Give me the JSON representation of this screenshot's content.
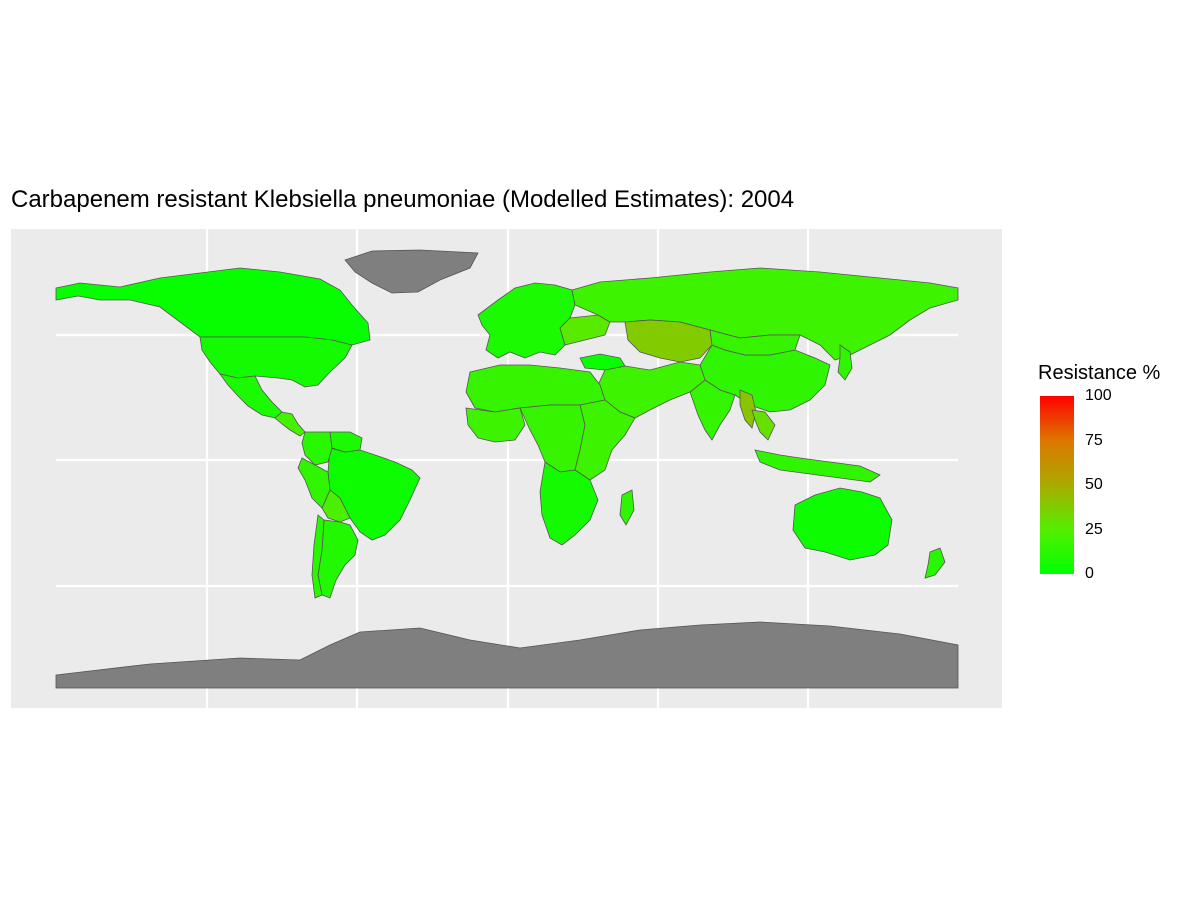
{
  "chart_data": {
    "type": "choropleth",
    "title": "Carbapenem resistant Klebsiella pneumoniae  (Modelled Estimates):  2004",
    "legend": {
      "title": "Resistance %",
      "ticks": [
        0,
        25,
        50,
        75,
        100
      ],
      "colors": [
        "#00ff00",
        "#ff0000"
      ],
      "placement": "right"
    },
    "panel_background": "#ebebeb",
    "gridlines": "white",
    "no_data_color": "#7f7f7f",
    "regions": [
      {
        "name": "Greenland",
        "value": null
      },
      {
        "name": "Antarctica",
        "value": null
      },
      {
        "name": "Canada",
        "value": 2
      },
      {
        "name": "United States",
        "value": 6
      },
      {
        "name": "Mexico",
        "value": 8
      },
      {
        "name": "Central America",
        "value": 20
      },
      {
        "name": "Brazil",
        "value": 4
      },
      {
        "name": "Bolivia",
        "value": 22
      },
      {
        "name": "Argentina",
        "value": 10
      },
      {
        "name": "Peru",
        "value": 14
      },
      {
        "name": "Colombia",
        "value": 12
      },
      {
        "name": "Venezuela",
        "value": 8
      },
      {
        "name": "Chile",
        "value": 12
      },
      {
        "name": "Europe",
        "value": 8
      },
      {
        "name": "Ukraine",
        "value": 26
      },
      {
        "name": "Russia",
        "value": 18
      },
      {
        "name": "Kazakhstan",
        "value": 38
      },
      {
        "name": "China",
        "value": 14
      },
      {
        "name": "Mongolia",
        "value": 16
      },
      {
        "name": "India",
        "value": 15
      },
      {
        "name": "Middle East",
        "value": 18
      },
      {
        "name": "Turkey",
        "value": 3
      },
      {
        "name": "Myanmar",
        "value": 40
      },
      {
        "name": "Thailand",
        "value": 30
      },
      {
        "name": "Japan",
        "value": 14
      },
      {
        "name": "North Africa",
        "value": 16
      },
      {
        "name": "West Africa",
        "value": 18
      },
      {
        "name": "Central Africa",
        "value": 16
      },
      {
        "name": "East Africa",
        "value": 18
      },
      {
        "name": "Southern Africa",
        "value": 6
      },
      {
        "name": "Madagascar",
        "value": 14
      },
      {
        "name": "Indonesia",
        "value": 14
      },
      {
        "name": "Australia",
        "value": 4
      },
      {
        "name": "New Zealand",
        "value": 12
      }
    ]
  }
}
